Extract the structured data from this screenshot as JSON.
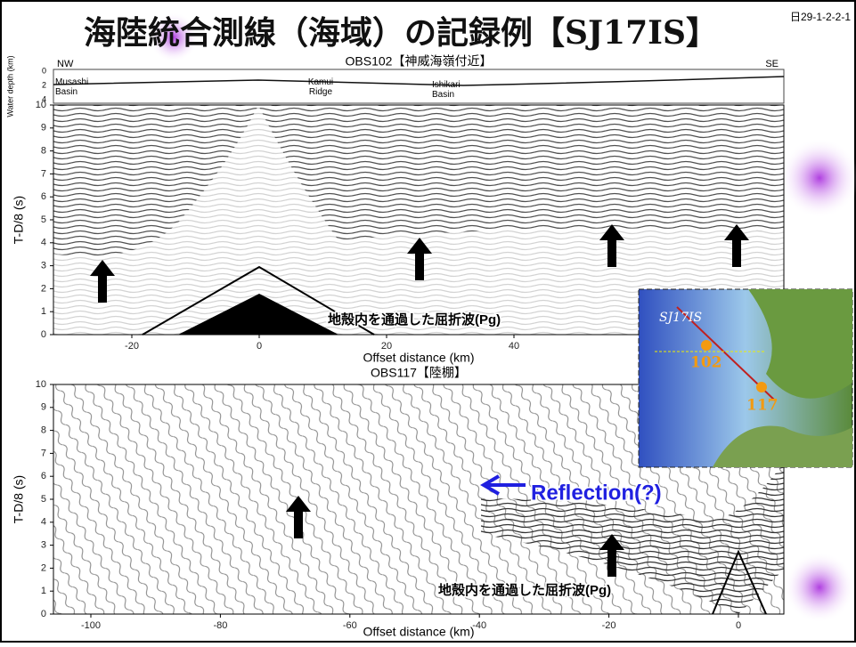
{
  "header": {
    "title": "海陸統合測線（海域）の記録例【SJ17IS】",
    "page_id": "日29-1-2-2-1"
  },
  "panels": [
    {
      "title": "OBS102【神威海嶺付近】",
      "ylabel": "T-D/8 (s)",
      "xlabel": "Offset distance (km)",
      "yticks": [
        0,
        1,
        2,
        3,
        4,
        5,
        6,
        7,
        8,
        9,
        10
      ],
      "xticks": [
        -20,
        0,
        20,
        40
      ],
      "direction_left": "NW",
      "direction_right": "SE",
      "depth_label": "Water depth (km)",
      "depth_ticks": [
        0,
        2,
        4
      ],
      "regions": [
        "Musashi Basin",
        "Kamui Ridge",
        "Ishikari Basin"
      ],
      "annotation": "地殻内を通過した屈折波(Pg)"
    },
    {
      "title": "OBS117【陸棚】",
      "ylabel": "T-D/8 (s)",
      "xlabel": "Offset distance (km)",
      "yticks": [
        0,
        1,
        2,
        3,
        4,
        5,
        6,
        7,
        8,
        9,
        10
      ],
      "xticks": [
        -100,
        -80,
        -60,
        -40,
        -20,
        0
      ],
      "annotation": "地殻内を通過した屈折波(Pg)",
      "reflection": "Reflection(?)"
    }
  ],
  "map": {
    "line": "SJ17IS",
    "stations": [
      "102",
      "117"
    ]
  }
}
